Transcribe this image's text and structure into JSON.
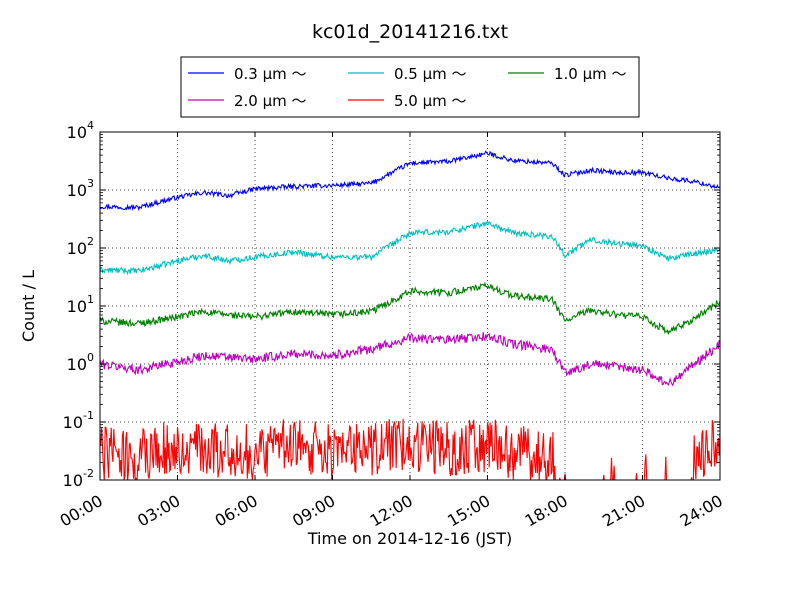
{
  "chart_data": {
    "type": "line",
    "title": "kc01d_20141216.txt",
    "xlabel": "Time on 2014-12-16 (JST)",
    "ylabel": "Count / L",
    "yscale": "log",
    "ylim": [
      0.01,
      10000
    ],
    "xlim": [
      "00:00",
      "24:00"
    ],
    "grid": true,
    "legend_position": "top-center",
    "x_ticks": [
      "00:00",
      "03:00",
      "06:00",
      "09:00",
      "12:00",
      "15:00",
      "18:00",
      "21:00",
      "24:00"
    ],
    "y_ticks": [
      {
        "base": "10",
        "exp": "-2",
        "value": 0.01
      },
      {
        "base": "10",
        "exp": "-1",
        "value": 0.1
      },
      {
        "base": "10",
        "exp": "0",
        "value": 1
      },
      {
        "base": "10",
        "exp": "1",
        "value": 10
      },
      {
        "base": "10",
        "exp": "2",
        "value": 100
      },
      {
        "base": "10",
        "exp": "3",
        "value": 1000
      },
      {
        "base": "10",
        "exp": "4",
        "value": 10000
      }
    ],
    "x_hours": [
      0,
      1.5,
      3,
      4,
      5,
      6,
      7.5,
      9,
      10.5,
      12,
      13.5,
      15,
      16,
      17.5,
      18,
      19,
      20,
      21,
      22,
      23,
      24
    ],
    "series": [
      {
        "name": "0.3 μm ～",
        "color": "#0000ff",
        "values": [
          520,
          500,
          750,
          900,
          800,
          1050,
          1150,
          1200,
          1300,
          2900,
          3100,
          4300,
          3200,
          2900,
          1800,
          2200,
          2000,
          2000,
          1600,
          1400,
          1100
        ]
      },
      {
        "name": "0.5 μm ～",
        "color": "#00bfbf",
        "values": [
          42,
          40,
          60,
          75,
          60,
          70,
          85,
          70,
          70,
          180,
          190,
          270,
          180,
          160,
          75,
          140,
          120,
          110,
          65,
          80,
          95
        ]
      },
      {
        "name": "1.0 μm ～",
        "color": "#008000",
        "values": [
          5.5,
          5,
          6.5,
          8,
          7,
          6.5,
          8,
          7,
          8,
          18,
          17,
          22,
          15,
          13,
          5.5,
          8.5,
          7,
          6.5,
          3.5,
          6,
          12
        ]
      },
      {
        "name": "2.0 μm ～",
        "color": "#bf00bf",
        "values": [
          1.0,
          0.8,
          1.1,
          1.4,
          1.3,
          1.2,
          1.5,
          1.4,
          1.8,
          2.8,
          2.6,
          3.0,
          2.2,
          1.8,
          0.7,
          1.0,
          0.9,
          0.8,
          0.45,
          1.0,
          2.2
        ]
      },
      {
        "name": "5.0 μm ～",
        "color": "#ff0000",
        "values": [
          0.03,
          0.025,
          0.04,
          0.03,
          0.035,
          0.03,
          0.04,
          0.03,
          0.035,
          0.04,
          0.035,
          0.04,
          0.03,
          0.025,
          0.01,
          0.01,
          0.01,
          0.01,
          0.01,
          0.025,
          0.05
        ]
      }
    ]
  }
}
